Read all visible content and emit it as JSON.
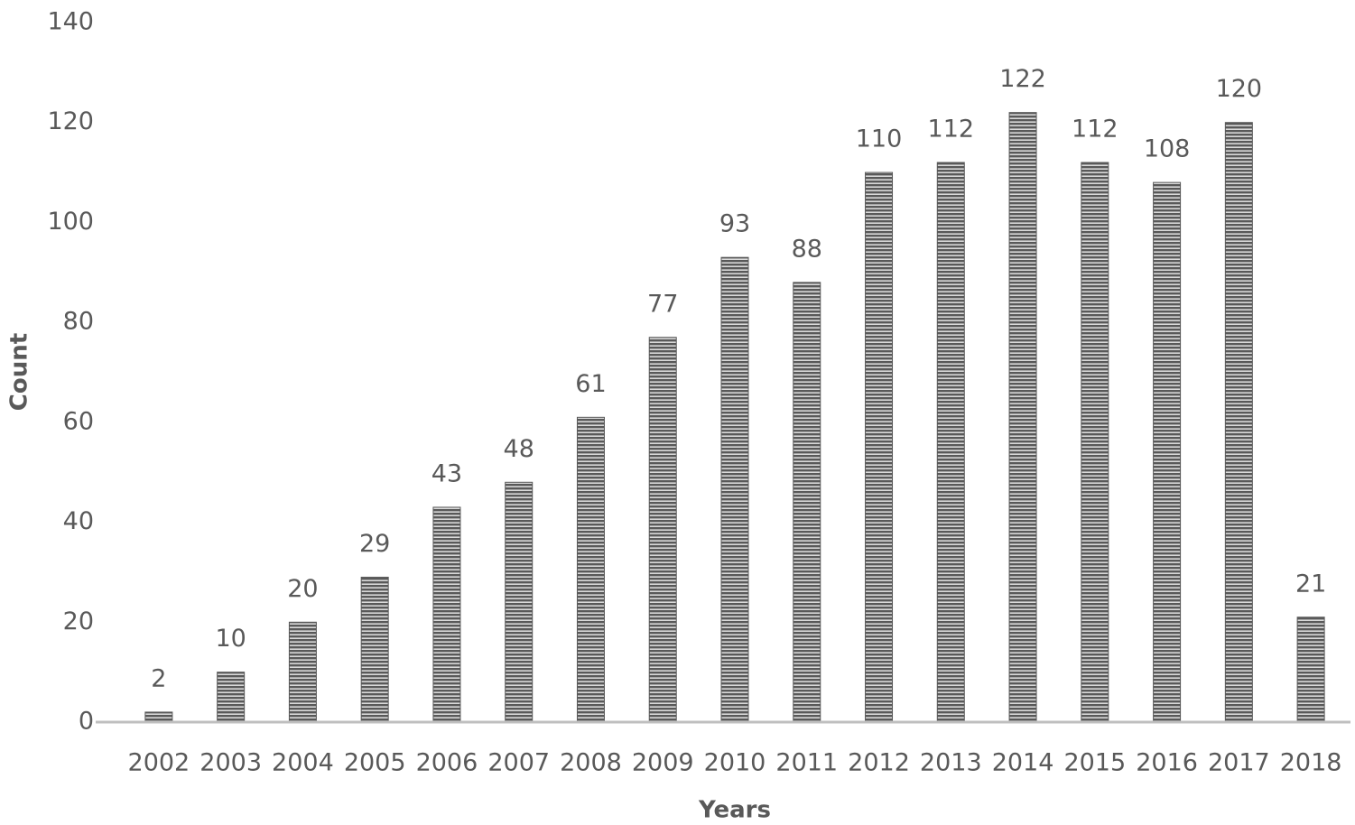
{
  "chart_data": {
    "type": "bar",
    "x_label": "Years",
    "y_label": "Count",
    "categories": [
      "2002",
      "2003",
      "2004",
      "2005",
      "2006",
      "2007",
      "2008",
      "2009",
      "2010",
      "2011",
      "2012",
      "2013",
      "2014",
      "2015",
      "2016",
      "2017",
      "2018"
    ],
    "values": [
      2,
      10,
      20,
      29,
      43,
      48,
      61,
      77,
      93,
      88,
      110,
      112,
      122,
      112,
      108,
      120,
      21
    ],
    "color": "#595959",
    "ylim": [
      0,
      140
    ],
    "yticks": [
      0,
      20,
      40,
      60,
      80,
      100,
      120,
      140
    ],
    "grid": false
  }
}
